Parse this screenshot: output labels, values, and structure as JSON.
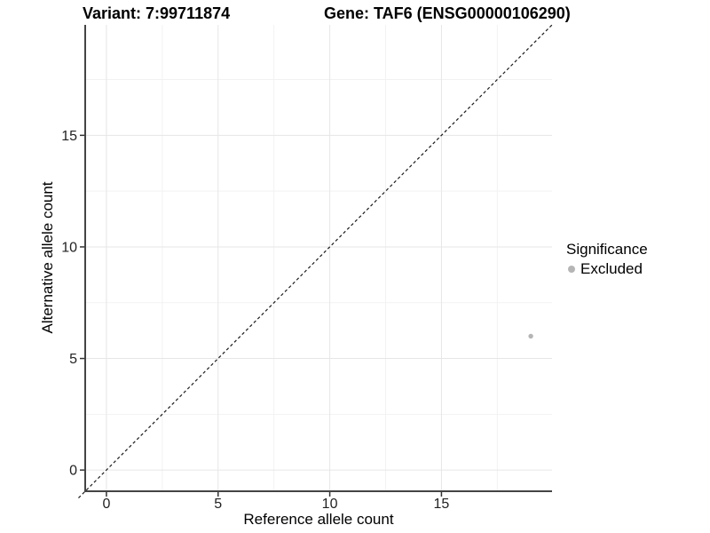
{
  "chart_data": {
    "type": "scatter",
    "title_left": "Variant: 7:99711874",
    "title_right": "Gene: TAF6 (ENSG00000106290)",
    "xlabel": "Reference allele count",
    "ylabel": "Alternative allele count",
    "xlim": [
      -0.95,
      19.95
    ],
    "ylim": [
      -0.95,
      19.95
    ],
    "x_ticks": [
      0,
      5,
      10,
      15
    ],
    "y_ticks": [
      0,
      5,
      10,
      15
    ],
    "x_minor_ticks": [
      2.5,
      7.5,
      12.5,
      17.5
    ],
    "y_minor_ticks": [
      2.5,
      7.5,
      12.5,
      17.5
    ],
    "grid": "major-and-minor",
    "legend_position": "right",
    "identity_line": {
      "style": "dashed",
      "slope": 1,
      "intercept": 0,
      "color": "#1a1a1a"
    },
    "series": [
      {
        "name": "Excluded",
        "color": "#b5b5b5",
        "point_radius": 2.7,
        "points": [
          {
            "x": 19,
            "y": 6
          }
        ]
      }
    ],
    "legend": {
      "title": "Significance",
      "entries": [
        {
          "label": "Excluded",
          "color": "#b5b5b5"
        }
      ]
    },
    "colors": {
      "background": "#ffffff",
      "grid_major": "#e6e6e6",
      "grid_minor": "#f2f2f2",
      "axis_line": "#444444",
      "tick_mark": "#333333",
      "tick_text": "#222222",
      "title_text": "#000000"
    }
  }
}
